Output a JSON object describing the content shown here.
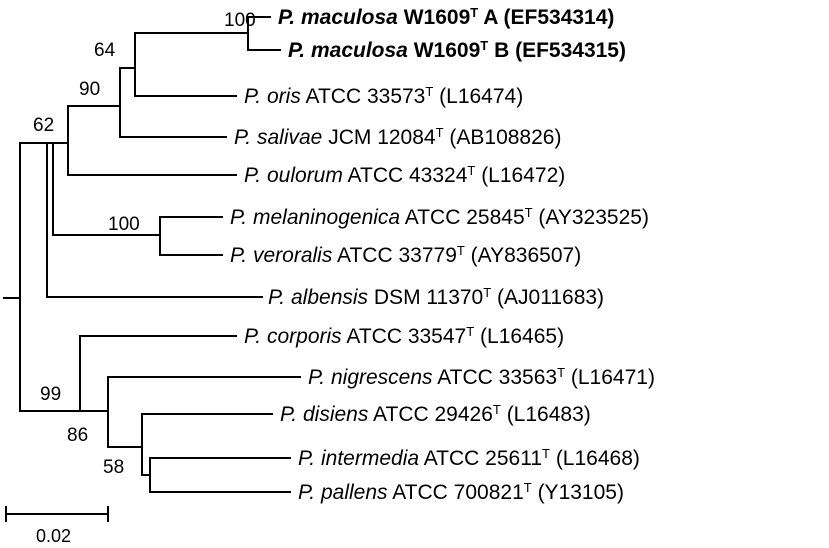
{
  "taxa": [
    {
      "genus": "P.",
      "species": "maculosa",
      "strain": "W1609",
      "type_mark": "T",
      "suffix": "A",
      "accession": "(EF534314)",
      "bold": true
    },
    {
      "genus": "P.",
      "species": "maculosa",
      "strain": "W1609",
      "type_mark": "T",
      "suffix": "B",
      "accession": "(EF534315)",
      "bold": true
    },
    {
      "genus": "P.",
      "species": "oris",
      "strain": "ATCC 33573",
      "type_mark": "T",
      "suffix": "",
      "accession": "(L16474)",
      "bold": false
    },
    {
      "genus": "P.",
      "species": "salivae",
      "strain": "JCM 12084",
      "type_mark": "T",
      "suffix": "",
      "accession": "(AB108826)",
      "bold": false
    },
    {
      "genus": "P.",
      "species": "oulorum",
      "strain": "ATCC 43324",
      "type_mark": "T",
      "suffix": "",
      "accession": "(L16472)",
      "bold": false
    },
    {
      "genus": "P.",
      "species": "melaninogenica",
      "strain": "ATCC 25845",
      "type_mark": "T",
      "suffix": "",
      "accession": "(AY323525)",
      "bold": false
    },
    {
      "genus": "P.",
      "species": "veroralis",
      "strain": "ATCC 33779",
      "type_mark": "T",
      "suffix": "",
      "accession": "(AY836507)",
      "bold": false
    },
    {
      "genus": "P.",
      "species": "albensis",
      "strain": "DSM 11370",
      "type_mark": "T",
      "suffix": "",
      "accession": "(AJ011683)",
      "bold": false
    },
    {
      "genus": "P.",
      "species": "corporis",
      "strain": "ATCC 33547",
      "type_mark": "T",
      "suffix": "",
      "accession": "(L16465)",
      "bold": false
    },
    {
      "genus": "P.",
      "species": "nigrescens",
      "strain": "ATCC 33563",
      "type_mark": "T",
      "suffix": "",
      "accession": "(L16471)",
      "bold": false
    },
    {
      "genus": "P.",
      "species": "disiens",
      "strain": "ATCC 29426",
      "type_mark": "T",
      "suffix": "",
      "accession": "(L16483)",
      "bold": false
    },
    {
      "genus": "P.",
      "species": "intermedia",
      "strain": "ATCC 25611",
      "type_mark": "T",
      "suffix": "",
      "accession": "(L16468)",
      "bold": false
    },
    {
      "genus": "P.",
      "species": "pallens",
      "strain": "ATCC 700821",
      "type_mark": "T",
      "suffix": "",
      "accession": "(Y13105)",
      "bold": false
    }
  ],
  "bootstrap": [
    "100",
    "64",
    "90",
    "62",
    "100",
    "99",
    "86",
    "58"
  ],
  "scale_bar": {
    "label": "0.02"
  }
}
